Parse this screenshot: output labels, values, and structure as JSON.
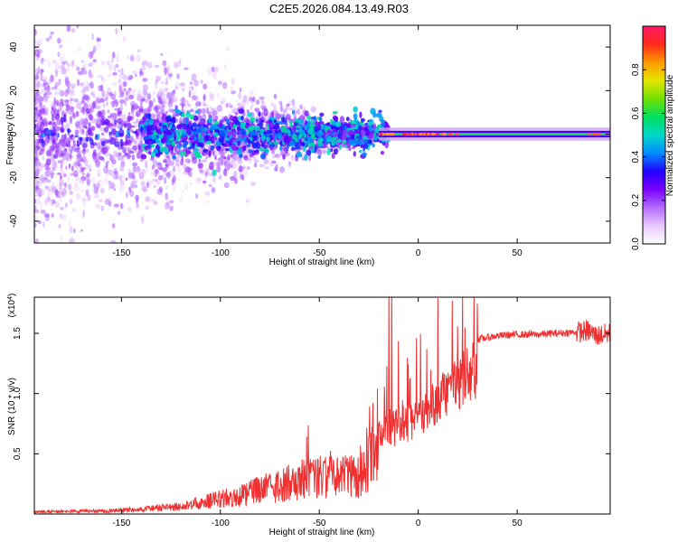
{
  "page": {
    "title": "C2E5.2026.084.13.49.R03"
  },
  "chart_data": [
    {
      "type": "heatmap",
      "name": "spectrogram",
      "xlabel": "Height of straight line (km)",
      "ylabel": "Frequency (Hz)",
      "xlim": [
        -194,
        97
      ],
      "ylim": [
        -50,
        50
      ],
      "xticks": [
        -150,
        -100,
        -50,
        0,
        50
      ],
      "xtick_labels": [
        "-150",
        "-100",
        "-50",
        "0",
        "50"
      ],
      "yticks": [
        -40,
        -20,
        0,
        20,
        40
      ],
      "ytick_labels": [
        "-40",
        "-20",
        "0",
        "20",
        "40"
      ],
      "colorbar": {
        "label": "Normalized spectral amplitude",
        "range": [
          0,
          1
        ],
        "ticks": [
          0.0,
          0.2,
          0.4,
          0.6,
          0.8
        ],
        "tick_labels": [
          "0.0",
          "0.2",
          "0.4",
          "0.6",
          "0.8"
        ],
        "colors": [
          "#ffffff",
          "#e9c8ff",
          "#b36bff",
          "#7a00ff",
          "#2200ff",
          "#008cff",
          "#00d8c8",
          "#00e060",
          "#70e000",
          "#e6e600",
          "#ff9900",
          "#ff2a1a",
          "#ff1a66"
        ]
      },
      "dominant_band": {
        "frequency_hz": 0,
        "start_km": -20,
        "end_km": 97,
        "amplitude": 0.6
      },
      "scatter_region": {
        "start_km": -194,
        "end_km": -20,
        "frequency_spread_hz": 50
      }
    },
    {
      "type": "line",
      "name": "snr",
      "xlabel": "Height of straight line (km)",
      "ylabel": "SNR (10 * v/v)",
      "y_scale_label": "(x10",
      "y_scale_exp": "4",
      "y_scale_close": ")",
      "xlim": [
        -194,
        97
      ],
      "ylim": [
        0,
        18000
      ],
      "xticks": [
        -150,
        -100,
        -50,
        0,
        50
      ],
      "xtick_labels": [
        "-150",
        "-100",
        "-50",
        "0",
        "50"
      ],
      "yticks": [
        5000,
        10000,
        15000
      ],
      "ytick_labels": [
        "0.5",
        "1.0",
        "1.5"
      ],
      "color": "#f03030",
      "series": [
        {
          "name": "SNR envelope",
          "x": [
            -194,
            -160,
            -140,
            -120,
            -110,
            -100,
            -90,
            -80,
            -70,
            -60,
            -50,
            -40,
            -30,
            -22,
            -16,
            -12,
            -8,
            -4,
            0,
            5,
            10,
            20,
            25,
            30,
            40,
            50,
            60,
            70,
            80,
            86,
            90,
            97
          ],
          "y": [
            300,
            400,
            600,
            1000,
            1500,
            2000,
            2500,
            3200,
            3800,
            4500,
            5000,
            4700,
            5200,
            7500,
            9000,
            8500,
            9500,
            9000,
            10000,
            10500,
            11500,
            13000,
            14000,
            14500,
            14800,
            14900,
            14900,
            15000,
            15100,
            15200,
            14800,
            15000
          ]
        }
      ]
    }
  ]
}
